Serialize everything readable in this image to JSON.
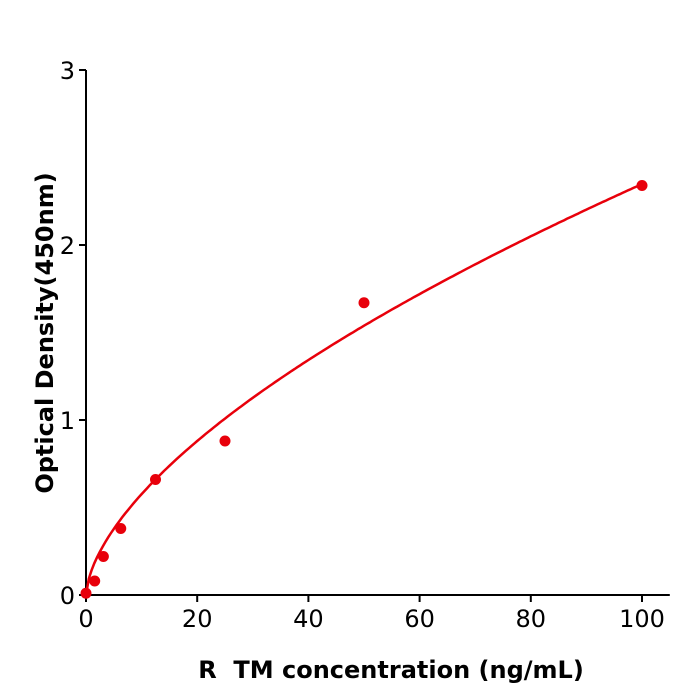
{
  "chart_data": {
    "type": "scatter",
    "title": "",
    "xlabel": "R  TM concentration (ng/mL)",
    "ylabel": "Optical Density(450nm)",
    "xlim": [
      0,
      105
    ],
    "ylim": [
      0,
      3
    ],
    "xticks": [
      "0",
      "20",
      "40",
      "60",
      "80",
      "100"
    ],
    "yticks": [
      "0",
      "1",
      "2",
      "3"
    ],
    "grid": false,
    "color": "#e8000b",
    "x": [
      0,
      1.5625,
      3.125,
      6.25,
      12.5,
      25,
      50,
      100
    ],
    "y": [
      0.01,
      0.08,
      0.22,
      0.38,
      0.66,
      0.88,
      1.67,
      2.34
    ],
    "fit_curve": true
  }
}
